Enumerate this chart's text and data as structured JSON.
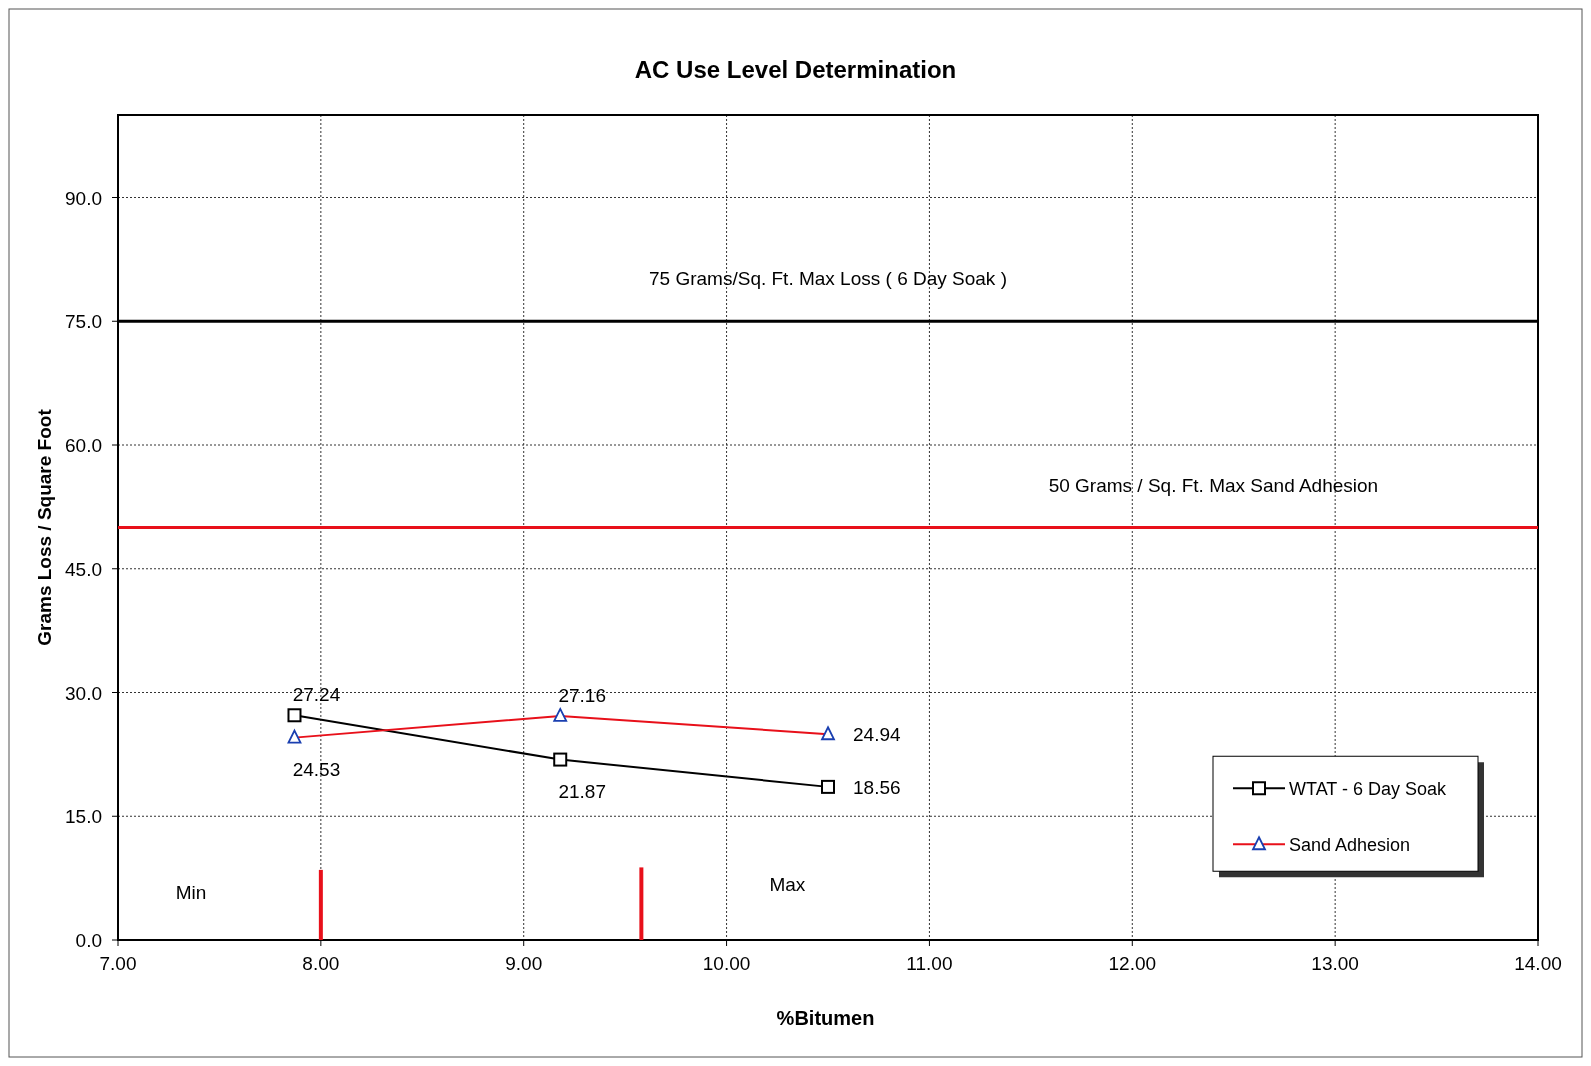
{
  "chart_data": {
    "type": "line",
    "title": "AC Use Level Determination",
    "xlabel": "%Bitumen",
    "ylabel": "Grams Loss / Square Foot",
    "xlim": [
      7,
      14
    ],
    "xticks": [
      {
        "value": 7,
        "label": "7.00"
      },
      {
        "value": 8,
        "label": "8.00"
      },
      {
        "value": 9,
        "label": "9.00"
      },
      {
        "value": 10,
        "label": "10.00"
      },
      {
        "value": 11,
        "label": "11.00"
      },
      {
        "value": 12,
        "label": "12.00"
      },
      {
        "value": 13,
        "label": "13.00"
      },
      {
        "value": 14,
        "label": "14.00"
      }
    ],
    "ylim": [
      0,
      100
    ],
    "yticks": [
      {
        "value": 0,
        "label": "0.0"
      },
      {
        "value": 15,
        "label": "15.0"
      },
      {
        "value": 30,
        "label": "30.0"
      },
      {
        "value": 45,
        "label": "45.0"
      },
      {
        "value": 60,
        "label": "60.0"
      },
      {
        "value": 75,
        "label": "75.0"
      },
      {
        "value": 90,
        "label": "90.0"
      }
    ],
    "grid": true,
    "legend": "bottom right",
    "series": [
      {
        "name": "WTAT - 6 Day Soak",
        "color": "#000000",
        "marker": "square",
        "x": [
          7.87,
          9.18,
          10.5
        ],
        "values": [
          27.24,
          21.87,
          18.56
        ],
        "value_labels": [
          "27.24",
          "21.87",
          "18.56"
        ]
      },
      {
        "name": "Sand Adhesion",
        "color": "#e8101a",
        "marker": "triangle",
        "x": [
          7.87,
          9.18,
          10.5
        ],
        "values": [
          24.53,
          27.16,
          24.94
        ],
        "value_labels": [
          "24.53",
          "27.16",
          "24.94"
        ]
      },
      {
        "color": "#e8101a",
        "marker": "none",
        "x": [
          8.0,
          8.0
        ],
        "values": [
          0,
          8.5
        ]
      },
      {
        "color": "#e8101a",
        "marker": "none",
        "x": [
          9.58,
          9.58
        ],
        "values": [
          0,
          8.8
        ]
      }
    ],
    "ref_lines": [
      {
        "axis": "y",
        "value": 75,
        "label": "75 Grams/Sq. Ft. Max Loss ( 6 Day Soak )",
        "color": "#000000"
      },
      {
        "axis": "y",
        "value": 50,
        "label": "50 Grams / Sq. Ft. Max Sand Adhesion",
        "color": "#e8101a"
      }
    ],
    "annotations": [
      "Min",
      "Max"
    ]
  }
}
